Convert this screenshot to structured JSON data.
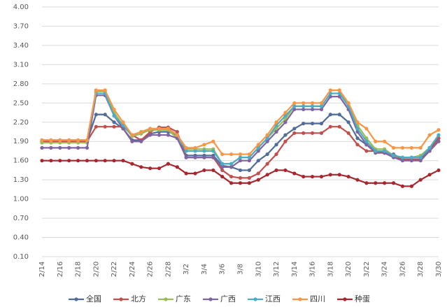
{
  "chart_data": {
    "type": "line",
    "categories": [
      "2/14",
      null,
      "2/16",
      null,
      "2/18",
      null,
      "2/20",
      null,
      "2/22",
      null,
      "2/24",
      null,
      "2/26",
      null,
      "2/28",
      null,
      "3/2",
      null,
      "3/4",
      null,
      "3/6",
      null,
      "3/8",
      null,
      "3/10",
      null,
      "3/12",
      null,
      "3/14",
      null,
      "3/16",
      null,
      "3/18",
      null,
      "3/20",
      null,
      "3/22",
      null,
      "3/24",
      null,
      "3/26",
      null,
      "3/28",
      null,
      "3/30"
    ],
    "ylim": [
      0.1,
      4.0
    ],
    "yticks": [
      {
        "value": 0.1,
        "label": "0.10"
      },
      {
        "value": 0.4,
        "label": "0.40"
      },
      {
        "value": 0.7,
        "label": "0.70"
      },
      {
        "value": 1.0,
        "label": "1.00"
      },
      {
        "value": 1.3,
        "label": "1.30"
      },
      {
        "value": 1.6,
        "label": "1.60"
      },
      {
        "value": 1.9,
        "label": "1.90"
      },
      {
        "value": 2.2,
        "label": "2.20"
      },
      {
        "value": 2.5,
        "label": "2.50"
      },
      {
        "value": 2.8,
        "label": "2.80"
      },
      {
        "value": 3.1,
        "label": "3.10"
      },
      {
        "value": 3.4,
        "label": "3.40"
      },
      {
        "value": 3.7,
        "label": "3.70"
      },
      {
        "value": 4.0,
        "label": "4.00"
      }
    ],
    "grid": true,
    "legend": "bottom",
    "series": [
      {
        "name": "全国",
        "color": "#4f6d98",
        "values": [
          1.9,
          1.9,
          1.9,
          1.9,
          1.9,
          1.9,
          2.32,
          2.32,
          2.2,
          2.1,
          1.92,
          1.92,
          2.02,
          2.05,
          2.05,
          2.0,
          1.68,
          1.68,
          1.68,
          1.68,
          1.52,
          1.5,
          1.45,
          1.45,
          1.6,
          1.7,
          1.85,
          2.0,
          2.1,
          2.18,
          2.18,
          2.18,
          2.32,
          2.32,
          2.2,
          1.95,
          1.85,
          1.75,
          1.72,
          1.7,
          1.62,
          1.62,
          1.62,
          1.8,
          1.95
        ]
      },
      {
        "name": "北方",
        "color": "#c0504d",
        "values": [
          1.9,
          1.9,
          1.9,
          1.9,
          1.9,
          1.9,
          2.13,
          2.13,
          2.13,
          2.13,
          2.0,
          1.92,
          2.05,
          2.12,
          2.12,
          2.05,
          1.65,
          1.65,
          1.65,
          1.65,
          1.45,
          1.35,
          1.33,
          1.33,
          1.4,
          1.55,
          1.7,
          1.9,
          2.03,
          2.03,
          2.03,
          2.03,
          2.13,
          2.13,
          2.03,
          1.85,
          1.75,
          1.75,
          1.72,
          1.68,
          1.62,
          1.62,
          1.62,
          1.75,
          1.95
        ]
      },
      {
        "name": "广东",
        "color": "#9bbb59",
        "values": [
          1.88,
          1.88,
          1.88,
          1.88,
          1.88,
          1.88,
          2.68,
          2.68,
          2.35,
          2.15,
          1.98,
          2.02,
          2.08,
          2.08,
          2.08,
          1.95,
          1.78,
          1.78,
          1.78,
          1.78,
          1.55,
          1.55,
          1.65,
          1.65,
          1.8,
          1.95,
          2.1,
          2.25,
          2.45,
          2.45,
          2.45,
          2.45,
          2.65,
          2.65,
          2.5,
          2.15,
          1.95,
          1.78,
          1.78,
          1.68,
          1.65,
          1.65,
          1.68,
          1.8,
          2.0
        ]
      },
      {
        "name": "广西",
        "color": "#8064a2",
        "values": [
          1.8,
          1.8,
          1.8,
          1.8,
          1.8,
          1.8,
          2.62,
          2.62,
          2.3,
          2.1,
          1.9,
          1.9,
          2.0,
          2.0,
          2.0,
          1.95,
          1.65,
          1.65,
          1.65,
          1.65,
          1.5,
          1.5,
          1.6,
          1.6,
          1.75,
          1.9,
          2.05,
          2.2,
          2.4,
          2.4,
          2.4,
          2.4,
          2.6,
          2.6,
          2.4,
          2.05,
          1.85,
          1.72,
          1.72,
          1.65,
          1.6,
          1.6,
          1.6,
          1.75,
          1.9
        ]
      },
      {
        "name": "江西",
        "color": "#4bacc6",
        "values": [
          1.92,
          1.92,
          1.92,
          1.92,
          1.92,
          1.92,
          2.65,
          2.65,
          2.3,
          2.15,
          2.0,
          2.05,
          2.1,
          2.1,
          2.1,
          2.0,
          1.75,
          1.75,
          1.75,
          1.75,
          1.55,
          1.55,
          1.65,
          1.65,
          1.8,
          1.95,
          2.15,
          2.3,
          2.45,
          2.45,
          2.45,
          2.45,
          2.65,
          2.65,
          2.45,
          2.1,
          1.9,
          1.75,
          1.75,
          1.68,
          1.65,
          1.65,
          1.65,
          1.8,
          2.0
        ]
      },
      {
        "name": "四川",
        "color": "#f79646",
        "values": [
          1.92,
          1.92,
          1.92,
          1.92,
          1.92,
          1.92,
          2.7,
          2.7,
          2.4,
          2.2,
          2.0,
          2.05,
          2.1,
          2.1,
          2.1,
          2.0,
          1.8,
          1.8,
          1.85,
          1.9,
          1.7,
          1.7,
          1.7,
          1.7,
          1.85,
          2.0,
          2.2,
          2.35,
          2.5,
          2.5,
          2.5,
          2.5,
          2.7,
          2.7,
          2.5,
          2.2,
          2.1,
          1.9,
          1.9,
          1.8,
          1.8,
          1.8,
          1.8,
          2.0,
          2.08
        ]
      },
      {
        "name": "种蛋",
        "color": "#a8262e",
        "values": [
          1.6,
          1.6,
          1.6,
          1.6,
          1.6,
          1.6,
          1.6,
          1.6,
          1.6,
          1.6,
          1.55,
          1.5,
          1.48,
          1.48,
          1.55,
          1.5,
          1.4,
          1.4,
          1.45,
          1.45,
          1.35,
          1.25,
          1.25,
          1.25,
          1.3,
          1.38,
          1.45,
          1.45,
          1.4,
          1.35,
          1.35,
          1.35,
          1.38,
          1.38,
          1.35,
          1.3,
          1.25,
          1.25,
          1.25,
          1.25,
          1.2,
          1.2,
          1.3,
          1.38,
          1.45
        ]
      }
    ]
  }
}
